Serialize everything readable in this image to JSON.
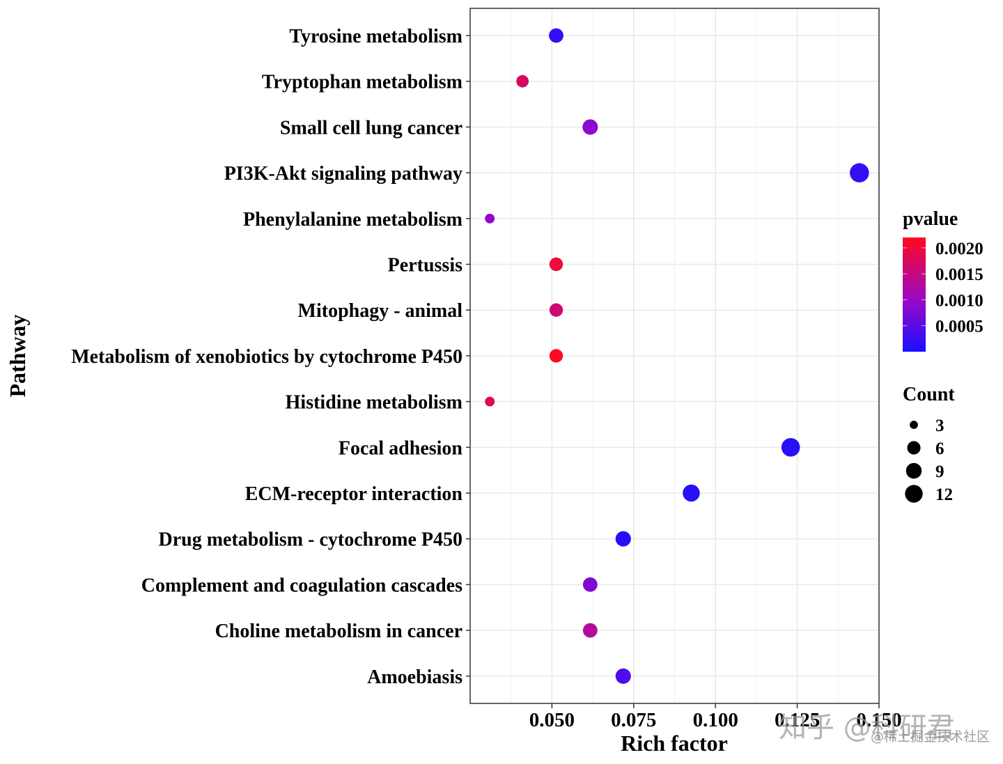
{
  "chart_data": {
    "type": "scatter",
    "subtype": "bubble",
    "title": "",
    "xlabel": "Rich factor",
    "ylabel": "Pathway",
    "xlim": [
      0.025,
      0.15
    ],
    "xticks": [
      0.05,
      0.075,
      0.1,
      0.125,
      0.15
    ],
    "xtick_labels": [
      "0.050",
      "0.075",
      "0.100",
      "0.125",
      "0.150"
    ],
    "grid": true,
    "categories": [
      "Tyrosine metabolism",
      "Tryptophan metabolism",
      "Small cell lung cancer",
      "PI3K-Akt signaling pathway",
      "Phenylalanine metabolism",
      "Pertussis",
      "Mitophagy - animal",
      "Metabolism of xenobiotics by cytochrome P450",
      "Histidine metabolism",
      "Focal adhesion",
      "ECM-receptor interaction",
      "Drug metabolism - cytochrome P450",
      "Complement and coagulation cascades",
      "Choline metabolism in cancer",
      "Amoebiasis"
    ],
    "points": [
      {
        "pathway": "Tyrosine metabolism",
        "rich_factor": 0.0513,
        "count": 6,
        "pvalue": 0.0002
      },
      {
        "pathway": "Tryptophan metabolism",
        "rich_factor": 0.041,
        "count": 4,
        "pvalue": 0.0017
      },
      {
        "pathway": "Small cell lung cancer",
        "rich_factor": 0.0617,
        "count": 7,
        "pvalue": 0.0009
      },
      {
        "pathway": "PI3K-Akt signaling pathway",
        "rich_factor": 0.144,
        "count": 12,
        "pvalue": 0.0002
      },
      {
        "pathway": "Phenylalanine metabolism",
        "rich_factor": 0.031,
        "count": 2,
        "pvalue": 0.0009
      },
      {
        "pathway": "Pertussis",
        "rich_factor": 0.0513,
        "count": 5,
        "pvalue": 0.002
      },
      {
        "pathway": "Mitophagy - animal",
        "rich_factor": 0.0513,
        "count": 5,
        "pvalue": 0.0016
      },
      {
        "pathway": "Metabolism of xenobiotics by cytochrome P450",
        "rich_factor": 0.0513,
        "count": 5,
        "pvalue": 0.0022
      },
      {
        "pathway": "Histidine metabolism",
        "rich_factor": 0.031,
        "count": 2,
        "pvalue": 0.0018
      },
      {
        "pathway": "Focal adhesion",
        "rich_factor": 0.123,
        "count": 11,
        "pvalue": 0.0001
      },
      {
        "pathway": "ECM-receptor interaction",
        "rich_factor": 0.0926,
        "count": 9,
        "pvalue": 0.0001
      },
      {
        "pathway": "Drug metabolism - cytochrome P450",
        "rich_factor": 0.0718,
        "count": 7,
        "pvalue": 0.0001
      },
      {
        "pathway": "Complement and coagulation cascades",
        "rich_factor": 0.0617,
        "count": 6,
        "pvalue": 0.0008
      },
      {
        "pathway": "Choline metabolism in cancer",
        "rich_factor": 0.0617,
        "count": 6,
        "pvalue": 0.0013
      },
      {
        "pathway": "Amoebiasis",
        "rich_factor": 0.0718,
        "count": 7,
        "pvalue": 0.0004
      }
    ],
    "color_legend": {
      "title": "pvalue",
      "low_color": "#1a10ff",
      "high_color": "#ff0a1e",
      "range": [
        0.0,
        0.0022
      ],
      "ticks": [
        0.002,
        0.0015,
        0.001,
        0.0005
      ],
      "tick_labels": [
        "0.0020",
        "0.0015",
        "0.0010",
        "0.0005"
      ]
    },
    "size_legend": {
      "title": "Count",
      "values": [
        3,
        6,
        9,
        12
      ],
      "labels": [
        "3",
        "6",
        "9",
        "12"
      ]
    },
    "legend_position": "right"
  },
  "watermark": {
    "main": "知乎 @科研君",
    "sub": "@稀土掘金技术社区"
  }
}
